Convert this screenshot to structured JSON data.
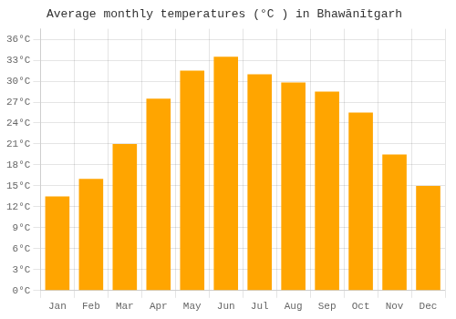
{
  "chart_data": {
    "type": "bar",
    "title": "Average monthly temperatures (°C ) in Bhawānītgarh",
    "categories": [
      "Jan",
      "Feb",
      "Mar",
      "Apr",
      "May",
      "Jun",
      "Jul",
      "Aug",
      "Sep",
      "Oct",
      "Nov",
      "Dec"
    ],
    "values": [
      13.5,
      16.0,
      21.0,
      27.5,
      31.5,
      33.5,
      31.0,
      29.8,
      28.5,
      25.5,
      19.5,
      15.0
    ],
    "color": "#FFA500",
    "ylim": [
      0,
      37.5
    ],
    "yticks": [
      {
        "value": 0,
        "label": "0°C"
      },
      {
        "value": 3,
        "label": "3°C"
      },
      {
        "value": 6,
        "label": "6°C"
      },
      {
        "value": 9,
        "label": "9°C"
      },
      {
        "value": 12,
        "label": "12°C"
      },
      {
        "value": 15,
        "label": "15°C"
      },
      {
        "value": 18,
        "label": "18°C"
      },
      {
        "value": 21,
        "label": "21°C"
      },
      {
        "value": 24,
        "label": "24°C"
      },
      {
        "value": 27,
        "label": "27°C"
      },
      {
        "value": 30,
        "label": "30°C"
      },
      {
        "value": 33,
        "label": "33°C"
      },
      {
        "value": 36,
        "label": "36°C"
      }
    ],
    "grid": true
  }
}
